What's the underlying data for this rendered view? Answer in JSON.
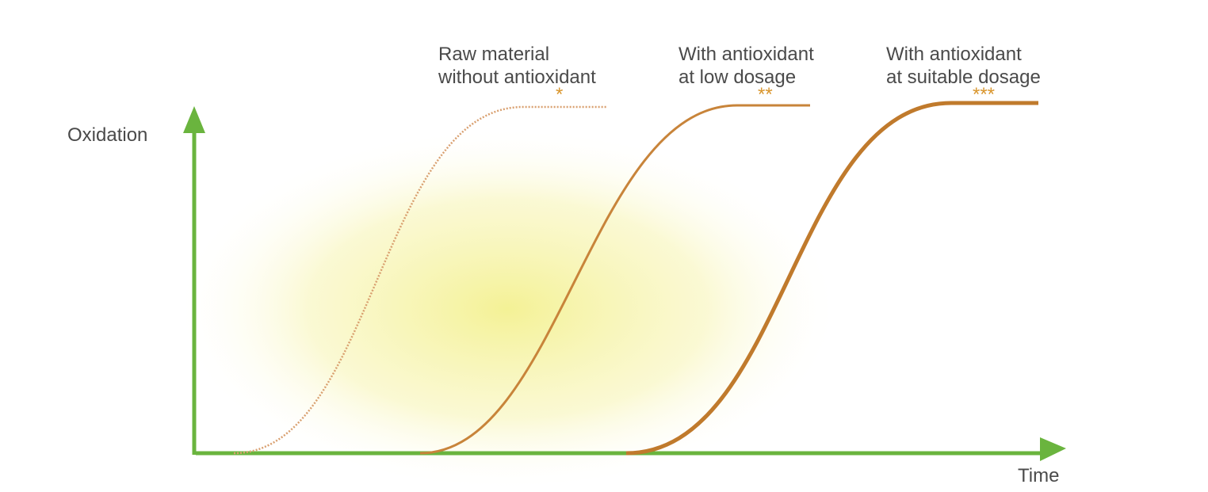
{
  "axes": {
    "y_label": "Oxidation",
    "x_label": "Time"
  },
  "curves": [
    {
      "label_lines": [
        "Raw material",
        "without antioxidant"
      ],
      "marker": "*"
    },
    {
      "label_lines": [
        "With antioxidant",
        "at low dosage"
      ],
      "marker": "**"
    },
    {
      "label_lines": [
        "With antioxidant",
        "at suitable dosage"
      ],
      "marker": "***"
    }
  ]
}
